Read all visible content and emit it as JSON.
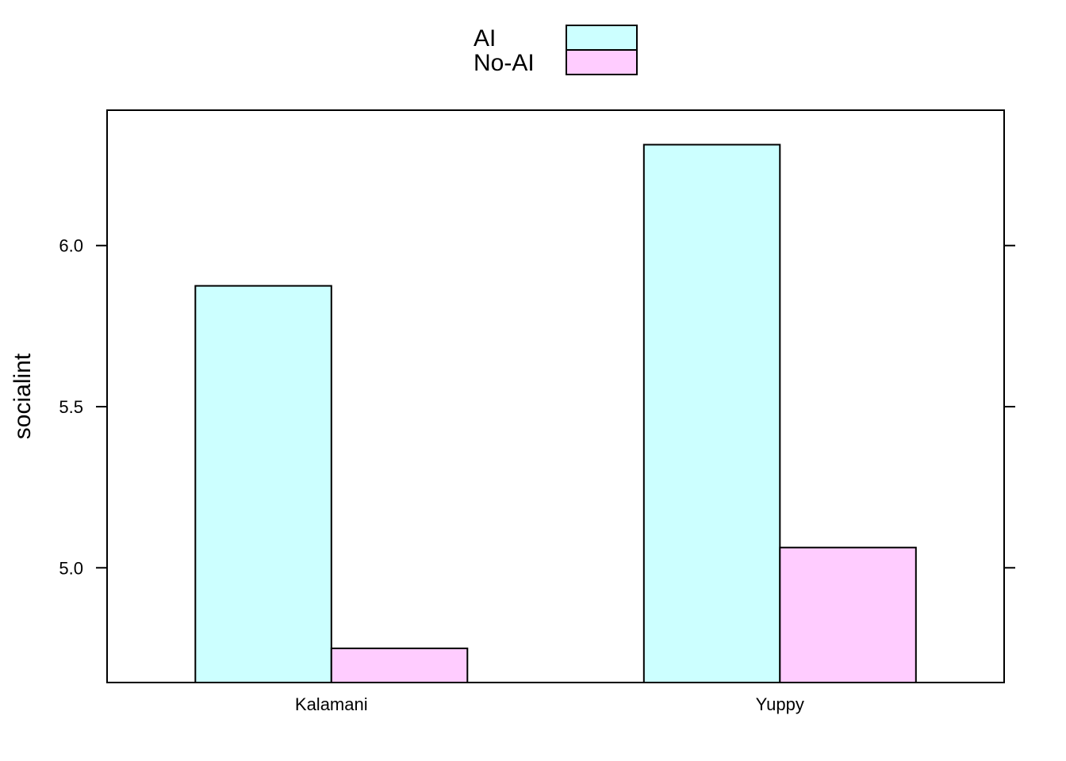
{
  "chart_data": {
    "type": "bar",
    "categories": [
      "Kalamani",
      "Yuppy"
    ],
    "series": [
      {
        "name": "AI",
        "values": [
          5.875,
          6.313
        ],
        "color": "#ccffff"
      },
      {
        "name": "No-AI",
        "values": [
          4.75,
          5.063
        ],
        "color": "#ffccff"
      }
    ],
    "ylabel": "socialint",
    "xlabel": "",
    "ylim": [
      4.644,
      6.42
    ],
    "yticks": [
      5.0,
      5.5,
      6.0
    ],
    "ytick_labels": [
      "5.0",
      "5.5",
      "6.0"
    ],
    "bar_base": 4.644,
    "legend_position": "top-center",
    "grid": false
  }
}
